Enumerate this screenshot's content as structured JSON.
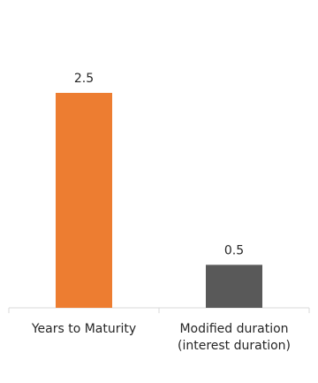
{
  "chart_data": {
    "type": "bar",
    "categories": [
      [
        "Years to Maturity"
      ],
      [
        "Modified duration",
        "(interest duration)"
      ]
    ],
    "values": [
      2.5,
      0.5
    ],
    "data_labels": [
      "2.5",
      "0.5"
    ],
    "colors": [
      "#ED7D31",
      "#595959"
    ],
    "title": "",
    "xlabel": "",
    "ylabel": "",
    "ylim": [
      0,
      2.5
    ],
    "grid": false,
    "legend": "none"
  }
}
